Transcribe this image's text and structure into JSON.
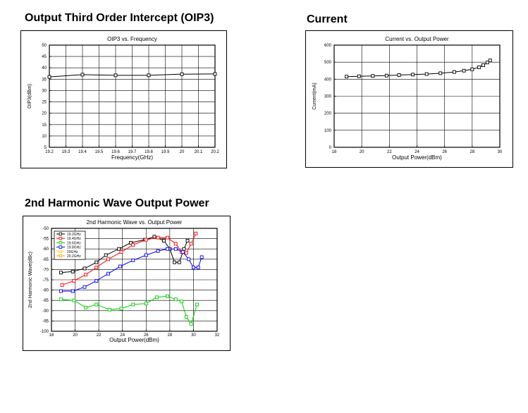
{
  "sections": {
    "oip3_heading": "Output Third Order Intercept (OIP3)",
    "current_heading": "Current",
    "harmonic_heading": "2nd Harmonic Wave Output Power"
  },
  "chart_data": [
    {
      "id": "oip3",
      "type": "line",
      "title": "OIP3 vs. Frequency",
      "xlabel": "Frequency(GHz)",
      "ylabel": "OIP3(dBm)",
      "xlim": [
        19.2,
        20.2
      ],
      "ylim": [
        5,
        50
      ],
      "xticks": [
        "19.2",
        "19.3",
        "19.4",
        "19.5",
        "19.6",
        "19.7",
        "19.8",
        "19.9",
        "20",
        "20.1",
        "20.2"
      ],
      "yticks": [
        "5",
        "10",
        "15",
        "20",
        "25",
        "30",
        "35",
        "40",
        "45",
        "50"
      ],
      "grid": true,
      "series": [
        {
          "color": "#000000",
          "x": [
            19.2,
            19.4,
            19.6,
            19.8,
            20.0,
            20.2
          ],
          "y": [
            36,
            37,
            36.7,
            36.7,
            37.2,
            37.3
          ]
        }
      ]
    },
    {
      "id": "current",
      "type": "line",
      "title": "Current vs. Output Power",
      "xlabel": "Output Power(dBm)",
      "ylabel": "Current(mA)",
      "xlim": [
        18,
        30
      ],
      "ylim": [
        0,
        600
      ],
      "xticks": [
        "18",
        "20",
        "22",
        "24",
        "26",
        "28",
        "30"
      ],
      "yticks": [
        "0",
        "100",
        "200",
        "300",
        "400",
        "500",
        "600"
      ],
      "grid": true,
      "series": [
        {
          "color": "#000000",
          "x": [
            18.9,
            19.8,
            20.8,
            21.8,
            22.7,
            23.7,
            24.7,
            25.7,
            26.7,
            27.4,
            28.0,
            28.5,
            28.8,
            29.1,
            29.3
          ],
          "y": [
            415,
            417,
            419,
            421,
            424,
            427,
            430,
            435,
            442,
            450,
            458,
            470,
            482,
            498,
            510
          ]
        }
      ]
    },
    {
      "id": "harmonic",
      "type": "line",
      "title": "2nd Harmonic Wave vs. Output Power",
      "xlabel": "Output Power(dBm)",
      "ylabel": "2nd Harmonic Wave(dBc)",
      "xlim": [
        18,
        32
      ],
      "ylim": [
        -100,
        -50
      ],
      "xticks": [
        "18",
        "20",
        "22",
        "24",
        "26",
        "28",
        "30",
        "32"
      ],
      "yticks": [
        "-50",
        "-55",
        "-60",
        "-65",
        "-70",
        "-75",
        "-80",
        "-85",
        "-90",
        "-95",
        "-100"
      ],
      "grid": true,
      "legend_position": "top-left",
      "series": [
        {
          "name": "19.2GHz",
          "color": "#000000",
          "x": [
            18.8,
            19.8,
            20.8,
            21.8,
            22.6,
            23.7,
            24.7,
            25.9,
            26.7,
            27.5,
            28.0,
            28.4,
            28.8,
            29.2,
            29.5
          ],
          "y": [
            -71.5,
            -71,
            -69.5,
            -66.5,
            -63,
            -60,
            -57,
            -55.5,
            -54,
            -56,
            -60,
            -66.5,
            -66.5,
            -60,
            -56
          ]
        },
        {
          "name": "19.4GHz",
          "color": "#ff0000",
          "x": [
            18.9,
            19.9,
            20.9,
            21.8,
            22.8,
            23.9,
            24.9,
            26.0,
            27.0,
            27.8,
            28.5,
            29.0,
            29.4,
            29.8,
            30.2
          ],
          "y": [
            -77.5,
            -75.5,
            -72.5,
            -69,
            -65,
            -61.5,
            -58,
            -55.5,
            -54.5,
            -54.5,
            -57.5,
            -61.5,
            -62,
            -57.5,
            -52.5
          ]
        },
        {
          "name": "19.6GHz",
          "color": "#00d000",
          "x": [
            18.8,
            19.9,
            20.9,
            21.8,
            22.9,
            23.9,
            24.9,
            26.0,
            26.9,
            27.8,
            28.5,
            29.0,
            29.4,
            29.8,
            30.3
          ],
          "y": [
            -84.5,
            -85,
            -88.5,
            -87,
            -89.5,
            -89,
            -87,
            -86.5,
            -83.5,
            -83,
            -84.5,
            -85.5,
            -93,
            -96.5,
            -87
          ]
        },
        {
          "name": "19.8GHz",
          "color": "#0000ff",
          "x": [
            18.8,
            19.8,
            20.8,
            21.8,
            22.8,
            23.8,
            24.9,
            26.0,
            27.0,
            27.8,
            28.5,
            29.1,
            29.6,
            30.0,
            30.4,
            30.7
          ],
          "y": [
            -80.5,
            -80.5,
            -78.5,
            -75.5,
            -72,
            -68.5,
            -65.5,
            -63,
            -61,
            -60,
            -60,
            -61.5,
            -65,
            -69,
            -69,
            -64
          ]
        },
        {
          "name": "20GHz",
          "color": "#ffd700",
          "x": [],
          "y": []
        },
        {
          "name": "20.2GHz",
          "color": "#ff9900",
          "x": [],
          "y": []
        }
      ]
    }
  ]
}
